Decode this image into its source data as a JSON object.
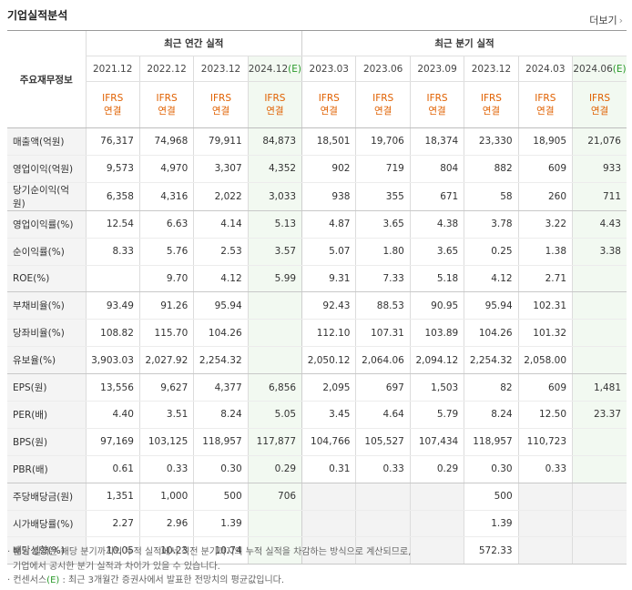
{
  "title": "기업실적분석",
  "more_label": "더보기",
  "more_arrow": "›",
  "header": {
    "row_label": "주요재무정보",
    "annual_group": "최근 연간 실적",
    "quarter_group": "최근 분기 실적",
    "periods": [
      {
        "label": "2021.12",
        "est": ""
      },
      {
        "label": "2022.12",
        "est": ""
      },
      {
        "label": "2023.12",
        "est": ""
      },
      {
        "label": "2024.12",
        "est": "(E)"
      },
      {
        "label": "2023.03",
        "est": ""
      },
      {
        "label": "2023.06",
        "est": ""
      },
      {
        "label": "2023.09",
        "est": ""
      },
      {
        "label": "2023.12",
        "est": ""
      },
      {
        "label": "2024.03",
        "est": ""
      },
      {
        "label": "2024.06",
        "est": "(E)"
      }
    ],
    "ifrs": "IFRS",
    "consolidated": "연결"
  },
  "rows": [
    {
      "label": "매출액(억원)",
      "values": [
        "76,317",
        "74,968",
        "79,911",
        "84,873",
        "18,501",
        "19,706",
        "18,374",
        "23,330",
        "18,905",
        "21,076"
      ]
    },
    {
      "label": "영업이익(억원)",
      "values": [
        "9,573",
        "4,970",
        "3,307",
        "4,352",
        "902",
        "719",
        "804",
        "882",
        "609",
        "933"
      ]
    },
    {
      "label": "당기순이익(억원)",
      "values": [
        "6,358",
        "4,316",
        "2,022",
        "3,033",
        "938",
        "355",
        "671",
        "58",
        "260",
        "711"
      ]
    },
    {
      "label": "영업이익률(%)",
      "values": [
        "12.54",
        "6.63",
        "4.14",
        "5.13",
        "4.87",
        "3.65",
        "4.38",
        "3.78",
        "3.22",
        "4.43"
      ]
    },
    {
      "label": "순이익률(%)",
      "values": [
        "8.33",
        "5.76",
        "2.53",
        "3.57",
        "5.07",
        "1.80",
        "3.65",
        "0.25",
        "1.38",
        "3.38"
      ]
    },
    {
      "label": "ROE(%)",
      "values": [
        "",
        "9.70",
        "4.12",
        "5.99",
        "9.31",
        "7.33",
        "5.18",
        "4.12",
        "2.71",
        ""
      ]
    },
    {
      "label": "부채비율(%)",
      "values": [
        "93.49",
        "91.26",
        "95.94",
        "",
        "92.43",
        "88.53",
        "90.95",
        "95.94",
        "102.31",
        ""
      ]
    },
    {
      "label": "당좌비율(%)",
      "values": [
        "108.82",
        "115.70",
        "104.26",
        "",
        "112.10",
        "107.31",
        "103.89",
        "104.26",
        "101.32",
        ""
      ]
    },
    {
      "label": "유보율(%)",
      "values": [
        "3,903.03",
        "2,027.92",
        "2,254.32",
        "",
        "2,050.12",
        "2,064.06",
        "2,094.12",
        "2,254.32",
        "2,058.00",
        ""
      ]
    },
    {
      "label": "EPS(원)",
      "values": [
        "13,556",
        "9,627",
        "4,377",
        "6,856",
        "2,095",
        "697",
        "1,503",
        "82",
        "609",
        "1,481"
      ]
    },
    {
      "label": "PER(배)",
      "values": [
        "4.40",
        "3.51",
        "8.24",
        "5.05",
        "3.45",
        "4.64",
        "5.79",
        "8.24",
        "12.50",
        "23.37"
      ]
    },
    {
      "label": "BPS(원)",
      "values": [
        "97,169",
        "103,125",
        "118,957",
        "117,877",
        "104,766",
        "105,527",
        "107,434",
        "118,957",
        "110,723",
        ""
      ]
    },
    {
      "label": "PBR(배)",
      "values": [
        "0.61",
        "0.33",
        "0.30",
        "0.29",
        "0.31",
        "0.33",
        "0.29",
        "0.30",
        "0.33",
        ""
      ]
    },
    {
      "label": "주당배당금(원)",
      "values": [
        "1,351",
        "1,000",
        "500",
        "706",
        "",
        "",
        "",
        "500",
        "",
        ""
      ]
    },
    {
      "label": "시가배당률(%)",
      "values": [
        "2.27",
        "2.96",
        "1.39",
        "",
        "",
        "",
        "",
        "1.39",
        "",
        ""
      ]
    },
    {
      "label": "배당성향(%)",
      "values": [
        "10.05",
        "10.23",
        "10.74",
        "",
        "",
        "",
        "",
        "572.33",
        "",
        ""
      ]
    }
  ],
  "notes": {
    "line1": "· 분기 실적은 해당 분기까지의 누적 실적에서 직전 분기까지의 누적 실적을 차감하는 방식으로 계산되므로,",
    "line2": "기업에서 공시한 분기 실적과 차이가 있을 수 있습니다.",
    "line3_pre": "· 컨센서스",
    "line3_e": "(E)",
    "line3_post": " : 최근 3개월간 증권사에서 발표한 전망치의 평균값입니다."
  }
}
